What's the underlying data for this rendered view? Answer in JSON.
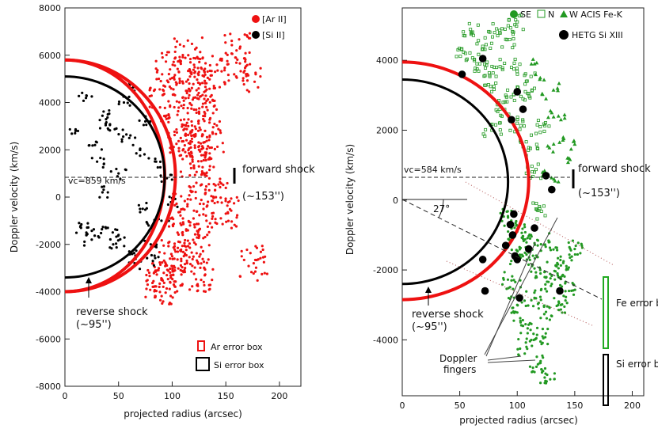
{
  "chart_data": [
    {
      "type": "scatter",
      "xlabel": "projected radius (arcsec)",
      "ylabel": "Doppler velocity (km/s)",
      "xlim": [
        0,
        220
      ],
      "ylim": [
        -8000,
        8000
      ],
      "xticks": [
        0,
        50,
        100,
        150,
        200
      ],
      "yticks": [
        -8000,
        -6000,
        -4000,
        -2000,
        0,
        2000,
        4000,
        6000,
        8000
      ],
      "series": [
        {
          "name": "[Ar II]",
          "color": "#ee1111",
          "points": [
            [
              120,
              4200
            ],
            [
              115,
              3000
            ],
            [
              125,
              2000
            ],
            [
              128,
              1000
            ],
            [
              110,
              -500
            ],
            [
              105,
              -1500
            ],
            [
              100,
              -2500
            ],
            [
              95,
              -3300
            ],
            [
              130,
              3600
            ],
            [
              135,
              2600
            ],
            [
              118,
              5200
            ],
            [
              122,
              -2000
            ],
            [
              108,
              2500
            ],
            [
              112,
              -3000
            ],
            [
              140,
              300
            ],
            [
              92,
              4500
            ],
            [
              88,
              -3800
            ],
            [
              126,
              4800
            ],
            [
              98,
              5400
            ],
            [
              140,
              5300
            ],
            [
              170,
              5200
            ],
            [
              176,
              -2800
            ],
            [
              150,
              -700
            ],
            [
              115,
              6000
            ],
            [
              160,
              6200
            ],
            [
              132,
              -1000
            ],
            [
              102,
              3800
            ],
            [
              90,
              -3500
            ],
            [
              127,
              -3500
            ],
            [
              119,
              1500
            ]
          ]
        },
        {
          "name": "[Si II]",
          "color": "#000000",
          "points": [
            [
              20,
              4300
            ],
            [
              40,
              3500
            ],
            [
              60,
              2500
            ],
            [
              30,
              1500
            ],
            [
              50,
              1000
            ],
            [
              70,
              -500
            ],
            [
              40,
              -1300
            ],
            [
              20,
              -1500
            ],
            [
              60,
              -2300
            ],
            [
              80,
              -2000
            ],
            [
              90,
              -1000
            ],
            [
              10,
              2800
            ],
            [
              75,
              3200
            ],
            [
              45,
              -2000
            ],
            [
              85,
              1500
            ],
            [
              55,
              4000
            ],
            [
              35,
              200
            ],
            [
              65,
              -2800
            ],
            [
              95,
              800
            ],
            [
              15,
              -1300
            ],
            [
              25,
              -1800
            ],
            [
              70,
              2000
            ],
            [
              50,
              -1600
            ],
            [
              38,
              3100
            ],
            [
              82,
              -2700
            ],
            [
              62,
              4600
            ],
            [
              28,
              2200
            ],
            [
              100,
              -200
            ],
            [
              48,
              2900
            ],
            [
              78,
              -1200
            ]
          ]
        }
      ],
      "curves": [
        {
          "name": "ar-shell",
          "color": "#ee1111",
          "vmax": 5800,
          "vmin": -4000,
          "r": 103
        },
        {
          "name": "ar-shell-2",
          "color": "#ee1111",
          "vmax": 5800,
          "vmin": -4000,
          "r": 93
        },
        {
          "name": "si-shell",
          "color": "#000000",
          "vmax": 5100,
          "vmin": -3400,
          "r": 93
        }
      ],
      "vc_label": "vc=859 km/s",
      "vc_value": 859,
      "forward_shock_label": "forward shock",
      "forward_shock_value": "(~153'')",
      "reverse_shock_label": "reverse shock",
      "reverse_shock_value": "(~95'')",
      "legend": [
        {
          "label": "[Ar II]",
          "color": "#ee1111"
        },
        {
          "label": "[Si II]",
          "color": "#000000"
        }
      ],
      "error_boxes": [
        {
          "label": "Ar error box",
          "color": "#ee1111"
        },
        {
          "label": "Si error box",
          "color": "#000000"
        }
      ]
    },
    {
      "type": "scatter",
      "xlabel": "projected radius (arcsec)",
      "ylabel": "Doppler velocity (km/s)",
      "xlim": [
        0,
        210
      ],
      "ylim": [
        -5600,
        5500
      ],
      "xticks": [
        0,
        50,
        100,
        150,
        200
      ],
      "yticks": [
        -4000,
        -2000,
        0,
        2000,
        4000
      ],
      "series": [
        {
          "name": "SE",
          "color": "#229922",
          "points": [
            [
              100,
              -900
            ],
            [
              110,
              -1500
            ],
            [
              120,
              -2000
            ],
            [
              130,
              -2400
            ],
            [
              115,
              -2800
            ],
            [
              125,
              -3200
            ],
            [
              105,
              -3600
            ],
            [
              140,
              -1800
            ],
            [
              135,
              -2100
            ],
            [
              108,
              -4200
            ],
            [
              118,
              -4700
            ],
            [
              128,
              -1200
            ],
            [
              145,
              -2600
            ],
            [
              112,
              -1000
            ],
            [
              100,
              -3000
            ],
            [
              92,
              -500
            ],
            [
              122,
              -3900
            ],
            [
              138,
              -3000
            ],
            [
              126,
              -5000
            ],
            [
              102,
              -1600
            ],
            [
              95,
              -2300
            ],
            [
              150,
              -1400
            ]
          ]
        },
        {
          "name": "N",
          "color": "#229922",
          "points": [
            [
              80,
              3800
            ],
            [
              90,
              3000
            ],
            [
              70,
              4400
            ],
            [
              100,
              2200
            ],
            [
              110,
              1500
            ],
            [
              85,
              2600
            ],
            [
              60,
              4800
            ],
            [
              75,
              3300
            ],
            [
              95,
              3800
            ],
            [
              105,
              2900
            ],
            [
              115,
              800
            ],
            [
              65,
              3900
            ],
            [
              120,
              2100
            ],
            [
              90,
              4600
            ],
            [
              100,
              5100
            ],
            [
              55,
              4200
            ],
            [
              78,
              2000
            ],
            [
              118,
              -300
            ],
            [
              82,
              4900
            ],
            [
              108,
              3400
            ]
          ]
        },
        {
          "name": "W ACIS Fe-K",
          "color": "#229922",
          "points": [
            [
              120,
              3500
            ],
            [
              130,
              2500
            ],
            [
              140,
              1800
            ],
            [
              125,
              2900
            ],
            [
              135,
              3200
            ],
            [
              145,
              1200
            ],
            [
              115,
              3900
            ],
            [
              128,
              1500
            ],
            [
              138,
              2300
            ],
            [
              150,
              1600
            ],
            [
              132,
              600
            ],
            [
              122,
              800
            ]
          ]
        },
        {
          "name": "HETG Si XIII",
          "color": "#000000",
          "points": [
            [
              52,
              3600
            ],
            [
              70,
              4050
            ],
            [
              100,
              3100
            ],
            [
              105,
              2600
            ],
            [
              95,
              2300
            ],
            [
              125,
              700
            ],
            [
              130,
              300
            ],
            [
              94,
              -700
            ],
            [
              96,
              -1000
            ],
            [
              98,
              -1600
            ],
            [
              90,
              -1300
            ],
            [
              102,
              -2800
            ],
            [
              115,
              -800
            ],
            [
              100,
              -1700
            ],
            [
              70,
              -1700
            ],
            [
              72,
              -2600
            ],
            [
              137,
              -2600
            ],
            [
              110,
              -1400
            ],
            [
              97,
              -400
            ]
          ]
        }
      ],
      "curves": [
        {
          "name": "fe-shell",
          "color": "#ee1111",
          "vmax": 3950,
          "vmin": -2850,
          "r": 110
        },
        {
          "name": "si-shell",
          "color": "#000000",
          "vmax": 3450,
          "vmin": -2400,
          "r": 92
        }
      ],
      "vc_label": "vc=584 km/s",
      "vc_value": 584,
      "angle_label": "27°",
      "forward_shock_label": "forward shock",
      "forward_shock_value": "(~153'')",
      "reverse_shock_label": "reverse shock",
      "reverse_shock_value": "(~95'')",
      "doppler_label_1": "Doppler",
      "doppler_label_2": "fingers",
      "legend": [
        {
          "label": "SE",
          "color": "#229922"
        },
        {
          "label": "N",
          "color": "#229922"
        },
        {
          "label": "W ACIS Fe-K",
          "color": "#229922"
        },
        {
          "label": "HETG Si XIII",
          "color": "#000000"
        }
      ],
      "error_boxes": [
        {
          "label": "Fe error box",
          "color": "#22aa22"
        },
        {
          "label": "Si error box",
          "color": "#000000"
        }
      ]
    }
  ]
}
